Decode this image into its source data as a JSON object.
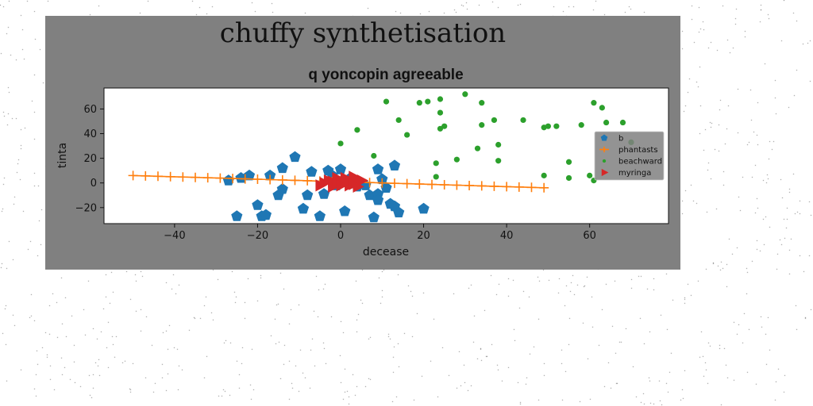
{
  "figure": {
    "suptitle": "chuffy synthetisation",
    "colors": {
      "panel": "#808080",
      "plot_bg": "#ffffff",
      "page_bg": "#ffffff"
    }
  },
  "chart_data": {
    "type": "scatter",
    "title": "q yoncopin agreeable",
    "xlabel": "decease",
    "ylabel": "tinta",
    "xlim": [
      -57,
      79
    ],
    "ylim": [
      -33,
      77
    ],
    "x_ticks": [
      -40,
      -20,
      0,
      20,
      40,
      60
    ],
    "y_ticks": [
      -20,
      0,
      20,
      40,
      60
    ],
    "grid": false,
    "legend_position": "center-right",
    "series": [
      {
        "name": "b",
        "marker": "pentagon",
        "color": "#1f77b4",
        "points": [
          [
            -27,
            2
          ],
          [
            -25,
            -27
          ],
          [
            -24,
            4
          ],
          [
            -22,
            6
          ],
          [
            -20,
            -18
          ],
          [
            -19,
            -27
          ],
          [
            -18,
            -26
          ],
          [
            -17,
            6
          ],
          [
            -15,
            -10
          ],
          [
            -14,
            -5
          ],
          [
            -14,
            12
          ],
          [
            -11,
            21
          ],
          [
            -9,
            -21
          ],
          [
            -8,
            -10
          ],
          [
            -7,
            9
          ],
          [
            -5,
            -27
          ],
          [
            -4,
            -9
          ],
          [
            -3,
            10
          ],
          [
            -2,
            6
          ],
          [
            -1,
            -2
          ],
          [
            0,
            11
          ],
          [
            1,
            -23
          ],
          [
            2,
            3
          ],
          [
            4,
            -3
          ],
          [
            5,
            0
          ],
          [
            6,
            -2
          ],
          [
            7,
            -10
          ],
          [
            8,
            -28
          ],
          [
            9,
            -9
          ],
          [
            9,
            11
          ],
          [
            9,
            -14
          ],
          [
            10,
            3
          ],
          [
            11,
            -4
          ],
          [
            12,
            -17
          ],
          [
            13,
            -19
          ],
          [
            13,
            14
          ],
          [
            14,
            -24
          ],
          [
            20,
            -21
          ]
        ]
      },
      {
        "name": "phantasts",
        "marker": "plus",
        "line": "solid",
        "color": "#ff7f0e",
        "points": [
          [
            -50,
            6
          ],
          [
            -47,
            5.7
          ],
          [
            -44,
            5.4
          ],
          [
            -41,
            5.1
          ],
          [
            -38,
            4.8
          ],
          [
            -35,
            4.5
          ],
          [
            -32,
            4.2
          ],
          [
            -29,
            3.9
          ],
          [
            -26,
            3.6
          ],
          [
            -23,
            3.3
          ],
          [
            -20,
            3
          ],
          [
            -17,
            2.7
          ],
          [
            -14,
            2.4
          ],
          [
            -11,
            2.1
          ],
          [
            -8,
            1.8
          ],
          [
            -5,
            1.5
          ],
          [
            -2,
            1.2
          ],
          [
            1,
            0.9
          ],
          [
            4,
            0.6
          ],
          [
            7,
            0.3
          ],
          [
            10,
            0
          ],
          [
            13,
            -0.3
          ],
          [
            16,
            -0.6
          ],
          [
            19,
            -0.9
          ],
          [
            22,
            -1.2
          ],
          [
            25,
            -1.5
          ],
          [
            28,
            -1.8
          ],
          [
            31,
            -2.1
          ],
          [
            34,
            -2.4
          ],
          [
            37,
            -2.7
          ],
          [
            40,
            -3
          ],
          [
            43,
            -3.3
          ],
          [
            46,
            -3.6
          ],
          [
            49,
            -3.9
          ]
        ]
      },
      {
        "name": "beachward",
        "marker": "circle",
        "color": "#2ca02c",
        "points": [
          [
            0,
            32
          ],
          [
            4,
            43
          ],
          [
            8,
            22
          ],
          [
            11,
            66
          ],
          [
            14,
            51
          ],
          [
            16,
            39
          ],
          [
            19,
            65
          ],
          [
            21,
            66
          ],
          [
            23,
            16
          ],
          [
            23,
            5
          ],
          [
            24,
            44
          ],
          [
            24,
            57
          ],
          [
            24,
            68
          ],
          [
            25,
            46
          ],
          [
            28,
            19
          ],
          [
            30,
            72
          ],
          [
            33,
            28
          ],
          [
            34,
            65
          ],
          [
            34,
            47
          ],
          [
            37,
            51
          ],
          [
            38,
            31
          ],
          [
            38,
            18
          ],
          [
            44,
            51
          ],
          [
            49,
            45
          ],
          [
            49,
            6
          ],
          [
            50,
            46
          ],
          [
            52,
            46
          ],
          [
            55,
            17
          ],
          [
            55,
            4
          ],
          [
            58,
            47
          ],
          [
            60,
            6
          ],
          [
            61,
            65
          ],
          [
            61,
            2
          ],
          [
            63,
            61
          ],
          [
            64,
            49
          ],
          [
            68,
            49
          ],
          [
            70,
            33
          ]
        ]
      },
      {
        "name": "myringa",
        "marker": "triangle-right",
        "color": "#d62728",
        "points": [
          [
            -5,
            -2
          ],
          [
            -4,
            0
          ],
          [
            -3,
            2
          ],
          [
            -2,
            1
          ],
          [
            -2,
            -3
          ],
          [
            -1,
            4
          ],
          [
            -1,
            -1
          ],
          [
            0,
            2
          ],
          [
            0,
            -2
          ],
          [
            1,
            0
          ],
          [
            1,
            4
          ],
          [
            2,
            -2
          ],
          [
            2,
            2
          ],
          [
            3,
            5
          ],
          [
            3,
            -1
          ],
          [
            4,
            1
          ],
          [
            4,
            -3
          ],
          [
            5,
            2
          ]
        ]
      }
    ]
  }
}
